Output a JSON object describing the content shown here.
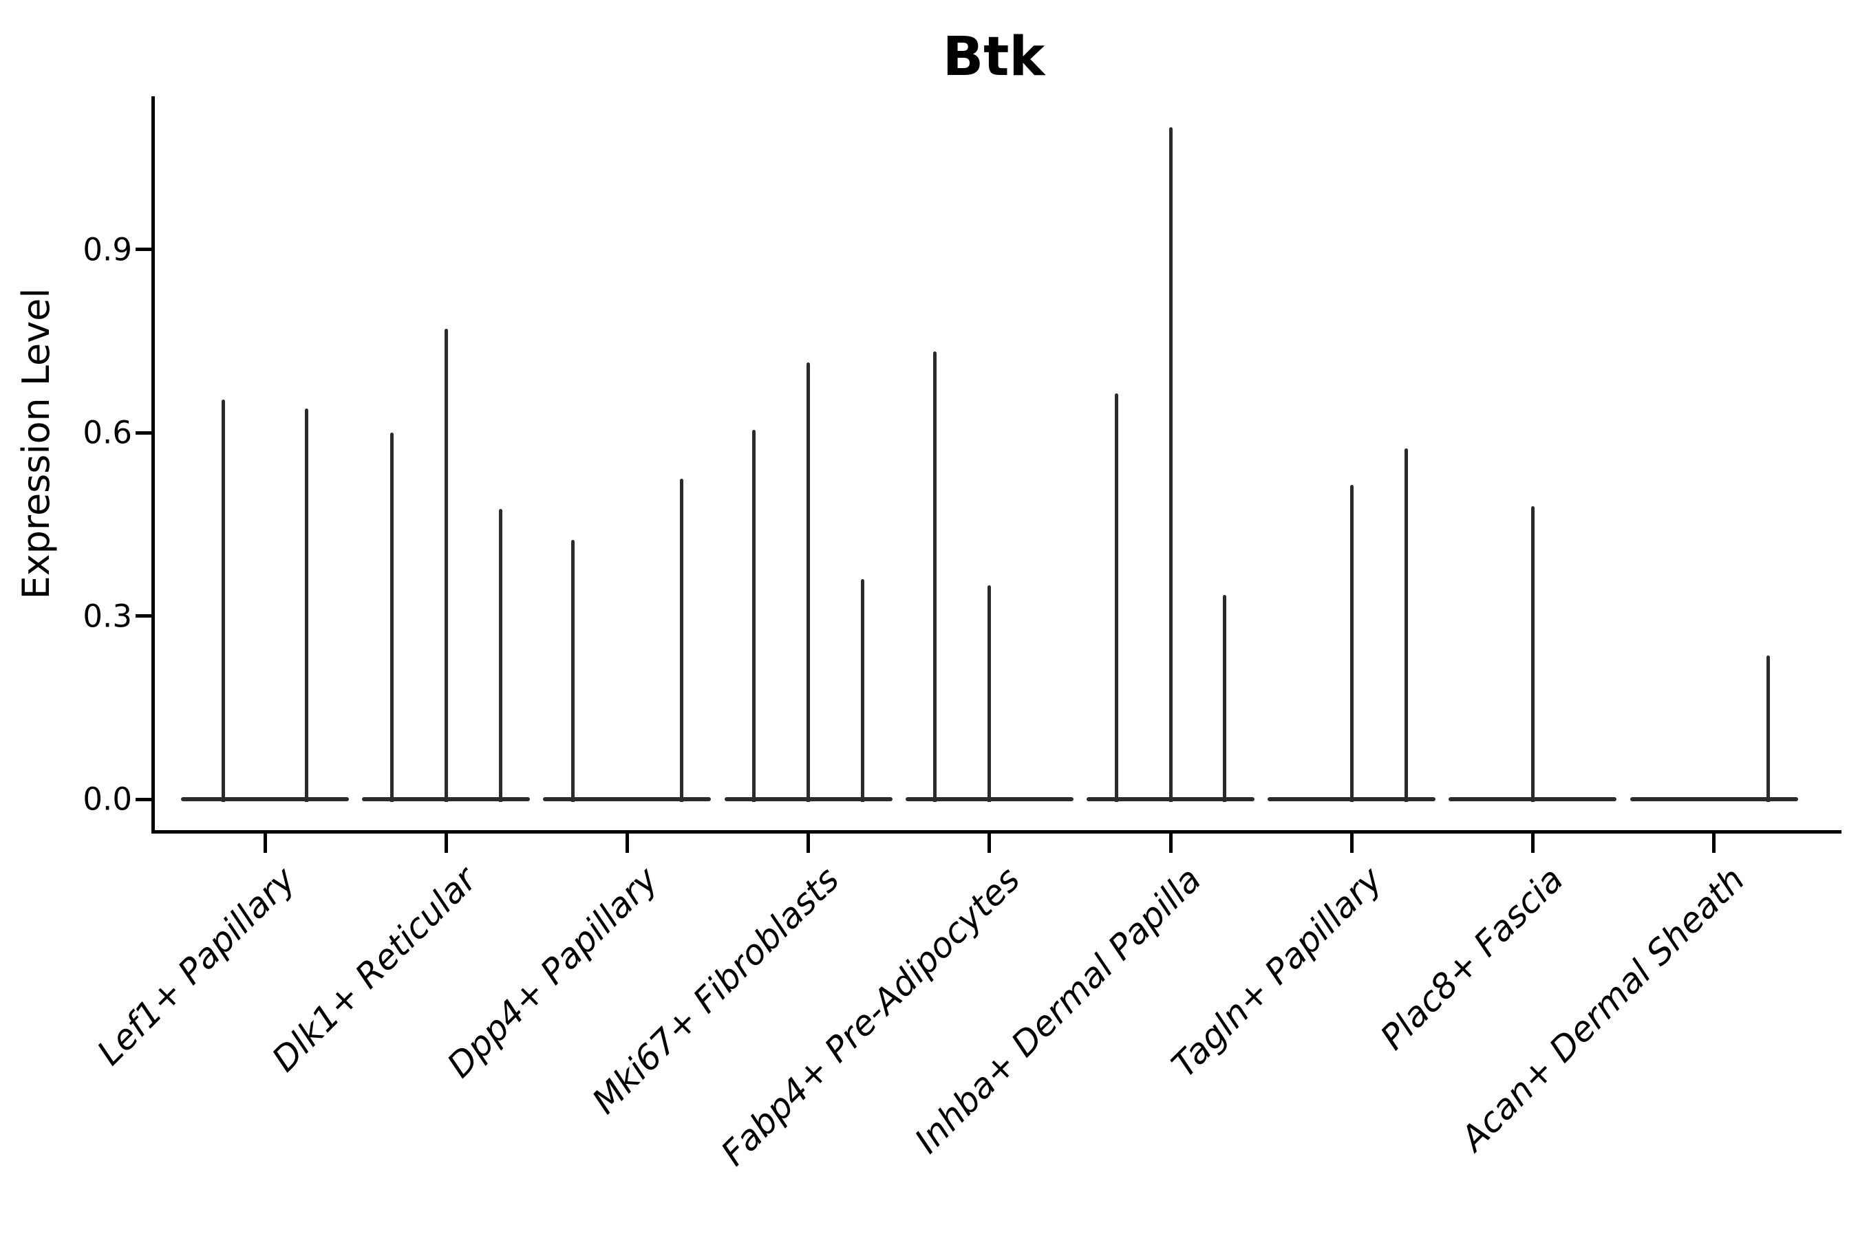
{
  "chart_data": {
    "type": "violin",
    "title": "Btk",
    "ylabel": "Expression Level",
    "xlabel": "",
    "ylim": [
      0,
      1.16
    ],
    "yticks": [
      0.0,
      0.3,
      0.6,
      0.9
    ],
    "ytick_labels": [
      "0.0",
      "0.3",
      "0.6",
      "0.9"
    ],
    "grid": false,
    "legend": "none",
    "categories": [
      "Lef1+ Papillary",
      "Dlk1+ Reticular",
      "Dpp4+ Papillary",
      "Mki67+ Fibroblasts",
      "Fabp4+ Pre-Adipocytes",
      "Inhba+ Dermal Papilla",
      "Tagln+ Papillary",
      "Plac8+ Fascia",
      "Acan+ Dermal Sheath"
    ],
    "groups": [
      {
        "category": "Lef1+ Papillary",
        "violins": [
          {
            "dodge_offset": -0.228,
            "max_expression": 0.655
          },
          {
            "dodge_offset": 0.228,
            "max_expression": 0.64
          }
        ]
      },
      {
        "category": "Dlk1+ Reticular",
        "violins": [
          {
            "dodge_offset": -0.3,
            "max_expression": 0.6
          },
          {
            "dodge_offset": 0,
            "max_expression": 0.77
          },
          {
            "dodge_offset": 0.3,
            "max_expression": 0.475
          }
        ]
      },
      {
        "category": "Dpp4+ Papillary",
        "violins": [
          {
            "dodge_offset": -0.3,
            "max_expression": 0.425
          },
          {
            "dodge_offset": 0.3,
            "max_expression": 0.525
          }
        ]
      },
      {
        "category": "Mki67+ Fibroblasts",
        "violins": [
          {
            "dodge_offset": -0.3,
            "max_expression": 0.605
          },
          {
            "dodge_offset": 0,
            "max_expression": 0.715
          },
          {
            "dodge_offset": 0.3,
            "max_expression": 0.36
          }
        ]
      },
      {
        "category": "Fabp4+ Pre-Adipocytes",
        "violins": [
          {
            "dodge_offset": -0.3,
            "max_expression": 0.733
          },
          {
            "dodge_offset": 0,
            "max_expression": 0.35
          }
        ]
      },
      {
        "category": "Inhba+ Dermal Papilla",
        "violins": [
          {
            "dodge_offset": -0.3,
            "max_expression": 0.665
          },
          {
            "dodge_offset": 0,
            "max_expression": 1.1
          },
          {
            "dodge_offset": 0.3,
            "max_expression": 0.335
          }
        ]
      },
      {
        "category": "Tagln+ Papillary",
        "violins": [
          {
            "dodge_offset": 0,
            "max_expression": 0.515
          },
          {
            "dodge_offset": 0.3,
            "max_expression": 0.575
          }
        ]
      },
      {
        "category": "Plac8+ Fascia",
        "violins": [
          {
            "dodge_offset": 0,
            "max_expression": 0.48
          }
        ]
      },
      {
        "category": "Acan+ Dermal Sheath",
        "violins": [
          {
            "dodge_offset": 0.3,
            "max_expression": 0.235
          }
        ]
      }
    ],
    "colors": {
      "ink": "#2b2b2b",
      "axis": "#000000",
      "background": "#ffffff"
    }
  }
}
